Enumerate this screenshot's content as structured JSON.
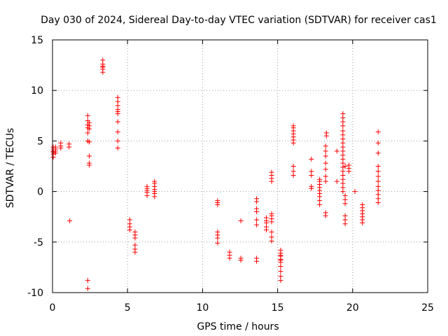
{
  "chart_data": {
    "type": "scatter",
    "title": "Day 030 of 2024, Sidereal Day-to-day VTEC variation (SDTVAR) for receiver cas1",
    "xlabel": "GPS time / hours",
    "ylabel": "SDTVAR / TECUs",
    "xlim": [
      0,
      25
    ],
    "ylim": [
      -10,
      15
    ],
    "x_ticks": [
      0,
      5,
      10,
      15,
      20,
      25
    ],
    "y_ticks": [
      -10,
      -5,
      0,
      5,
      10,
      15
    ],
    "x_tick_labels": [
      "0",
      "5",
      "10",
      "15",
      "20",
      "25"
    ],
    "y_tick_labels": [
      "-10",
      "-5",
      "0",
      "5",
      "10",
      "15"
    ],
    "grid": true,
    "marker": "+",
    "series": [
      {
        "name": "SDTVAR",
        "color": "#ff0000",
        "clusters": [
          {
            "x": 0.05,
            "y": [
              3.4,
              3.7,
              3.9,
              4.0,
              4.2,
              4.4
            ]
          },
          {
            "x": 0.2,
            "y": [
              3.8,
              4.0,
              4.2,
              4.4
            ]
          },
          {
            "x": 0.55,
            "y": [
              4.3,
              4.5,
              4.8
            ]
          },
          {
            "x": 1.1,
            "y": [
              4.4,
              4.7
            ]
          },
          {
            "x": 1.15,
            "y": [
              -2.9
            ]
          },
          {
            "x": 2.35,
            "y": [
              5.0,
              5.8,
              6.3,
              6.6,
              7.0,
              7.5
            ]
          },
          {
            "x": 2.45,
            "y": [
              4.9,
              6.2,
              6.5,
              6.8,
              3.5,
              2.8,
              2.6
            ]
          },
          {
            "x": 2.35,
            "y": [
              -8.8,
              -9.6
            ]
          },
          {
            "x": 3.35,
            "y": [
              11.8,
              12.1,
              12.3,
              12.4,
              12.6,
              13.0
            ]
          },
          {
            "x": 4.35,
            "y": [
              4.3,
              5.0,
              5.9,
              6.9,
              7.7,
              7.9,
              8.1,
              8.5,
              8.9,
              9.3
            ]
          },
          {
            "x": 5.15,
            "y": [
              -2.8,
              -3.2,
              -3.5,
              -3.8
            ]
          },
          {
            "x": 5.5,
            "y": [
              -4.0,
              -4.3,
              -4.6,
              -5.3,
              -5.7,
              -6.0
            ]
          },
          {
            "x": 6.3,
            "y": [
              -0.4,
              -0.1,
              0.1,
              0.3,
              0.5
            ]
          },
          {
            "x": 6.8,
            "y": [
              -0.5,
              -0.2,
              0.0,
              0.2,
              0.5,
              0.8,
              1.0
            ]
          },
          {
            "x": 11.0,
            "y": [
              -0.9,
              -1.1,
              -1.3,
              -4.0,
              -4.3,
              -4.6,
              -5.1
            ]
          },
          {
            "x": 11.8,
            "y": [
              -6.0,
              -6.3,
              -6.6
            ]
          },
          {
            "x": 12.55,
            "y": [
              -2.9,
              -6.6,
              -6.8
            ]
          },
          {
            "x": 13.6,
            "y": [
              -0.7,
              -1.0,
              -1.7,
              -2.0,
              -2.8,
              -3.3,
              -6.6,
              -6.9
            ]
          },
          {
            "x": 14.25,
            "y": [
              -2.6,
              -2.9,
              -3.1,
              -3.5,
              -3.8
            ]
          },
          {
            "x": 14.6,
            "y": [
              -2.4,
              -2.7,
              -3.0,
              -4.0,
              -4.5,
              -4.9,
              -2.2,
              1.0,
              1.3,
              1.6,
              1.9
            ]
          },
          {
            "x": 15.2,
            "y": [
              -5.8,
              -6.1,
              -6.4,
              -6.7,
              -7.0,
              -7.4,
              -7.9,
              -8.4,
              -8.8,
              -6.3,
              -6.8
            ]
          },
          {
            "x": 16.05,
            "y": [
              2.5,
              2.0,
              1.6,
              4.8,
              5.1,
              5.4,
              5.7,
              6.0,
              6.3,
              6.5
            ]
          },
          {
            "x": 17.25,
            "y": [
              3.2,
              2.0,
              1.6,
              0.5,
              0.3
            ]
          },
          {
            "x": 17.8,
            "y": [
              -1.3,
              -0.9,
              -0.5,
              -0.2,
              0.1,
              0.4,
              0.7,
              1.0,
              1.2
            ]
          },
          {
            "x": 18.2,
            "y": [
              -2.4,
              -2.1,
              1.0,
              1.5,
              2.2,
              2.8,
              3.5,
              4.0,
              4.5
            ]
          },
          {
            "x": 18.25,
            "y": [
              5.5,
              5.8
            ]
          },
          {
            "x": 18.95,
            "y": [
              4.0,
              1.0
            ]
          },
          {
            "x": 19.35,
            "y": [
              7.7,
              7.3,
              6.9,
              6.5,
              6.0,
              5.6,
              5.2,
              4.8,
              4.4,
              4.0,
              3.6,
              3.2,
              2.8,
              2.4,
              2.0,
              1.6,
              1.2,
              0.8,
              0.4,
              0.0
            ]
          },
          {
            "x": 19.5,
            "y": [
              -0.4,
              -0.8,
              -1.2,
              -2.4,
              -2.8,
              -3.2,
              2.5
            ]
          },
          {
            "x": 19.75,
            "y": [
              2.0,
              2.3,
              2.6
            ]
          },
          {
            "x": 20.15,
            "y": [
              0.0
            ]
          },
          {
            "x": 20.65,
            "y": [
              -1.3,
              -1.6,
              -1.9,
              -2.2,
              -2.5,
              -2.8,
              -3.1
            ]
          },
          {
            "x": 21.7,
            "y": [
              -1.1,
              -0.7,
              -0.3,
              0.1,
              0.5,
              1.0,
              1.5,
              2.0,
              2.5,
              3.8,
              4.8,
              5.9
            ]
          }
        ]
      }
    ]
  }
}
